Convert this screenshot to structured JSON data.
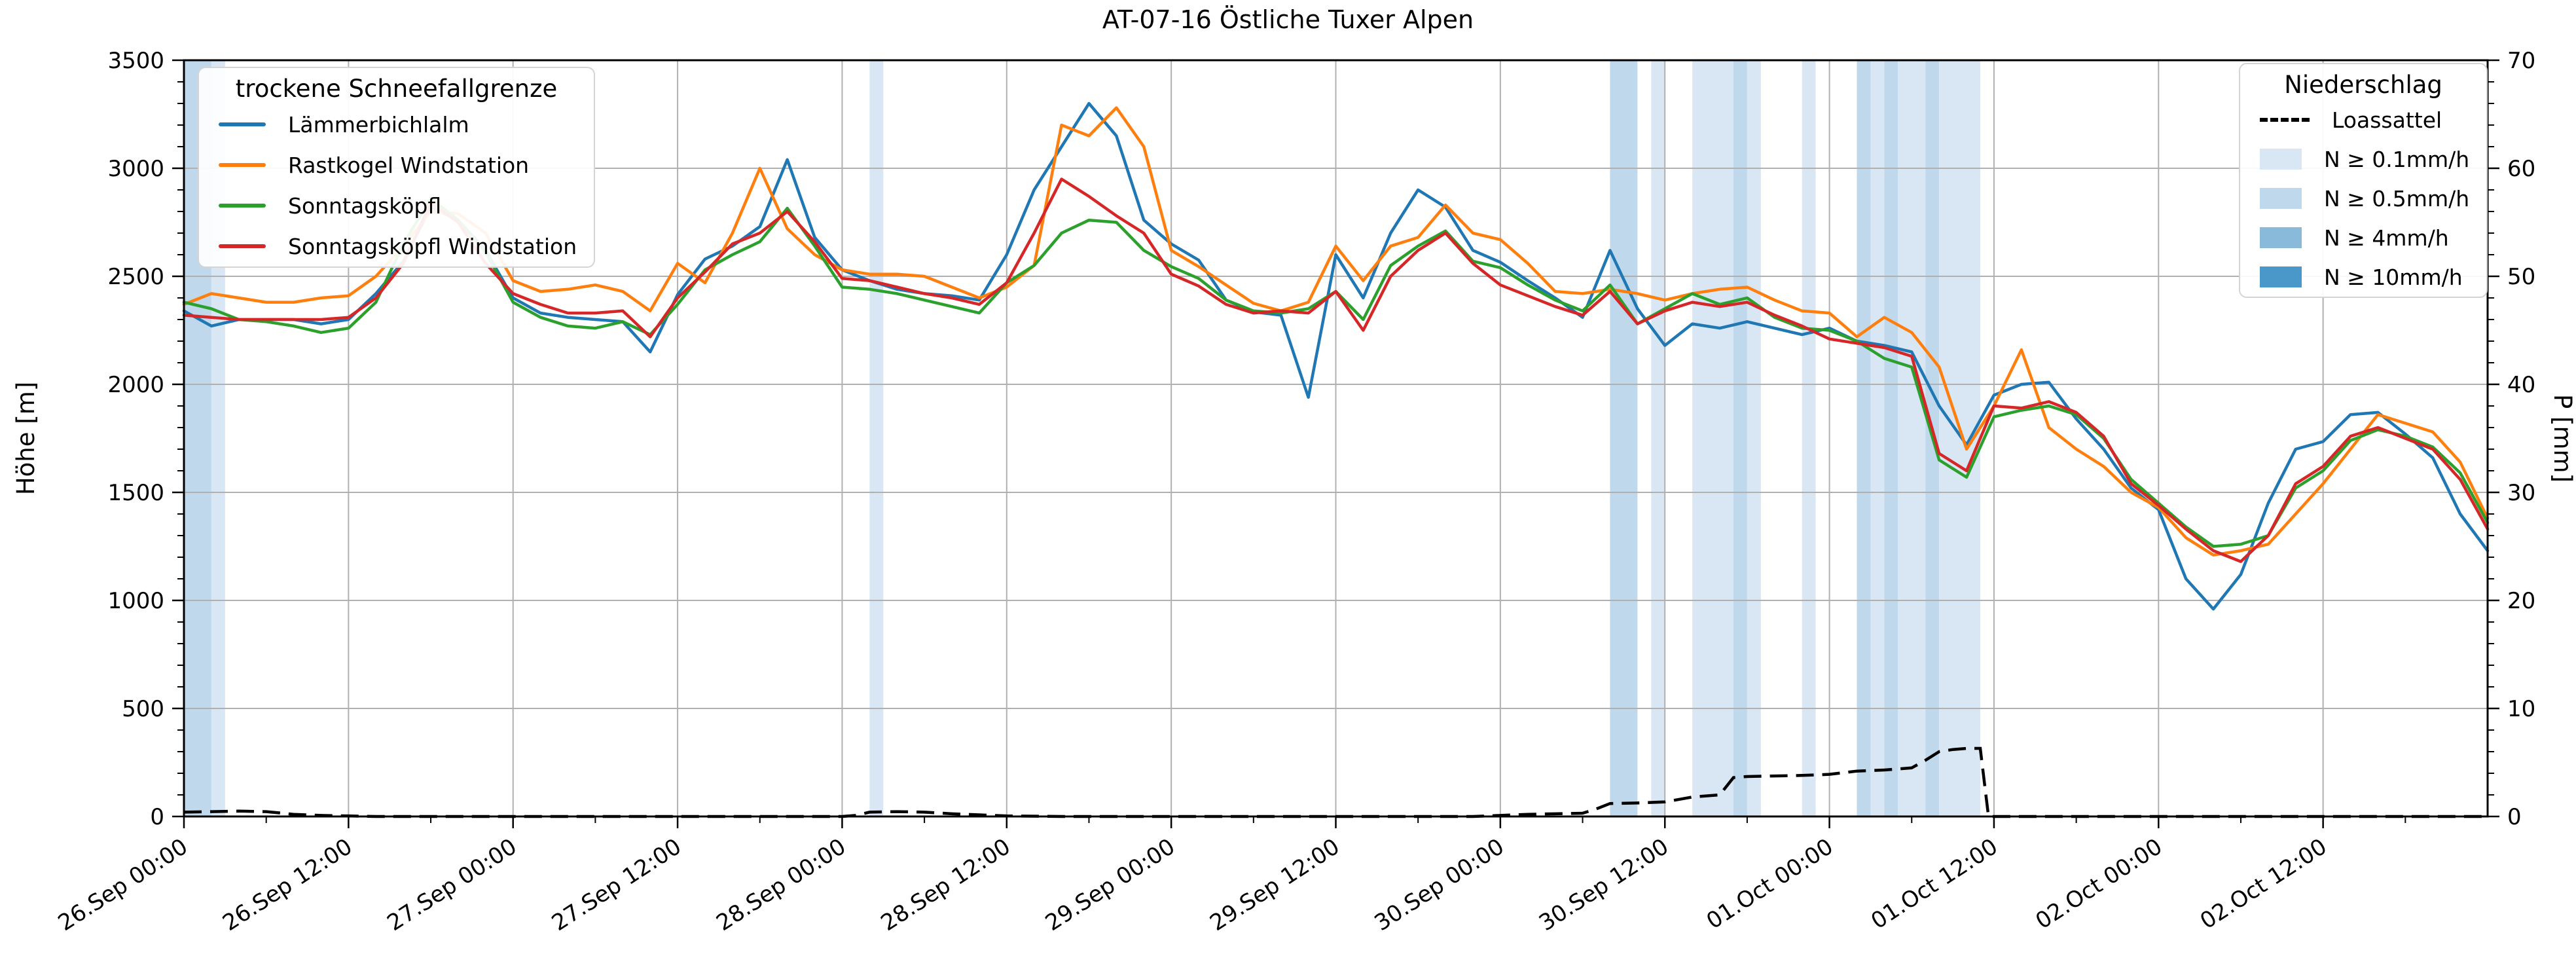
{
  "title": "AT-07-16 Östliche Tuxer Alpen",
  "axes": {
    "y_left_label": "Höhe [m]",
    "y_right_label": "P [mm]",
    "y_left_ticks": [
      0,
      500,
      1000,
      1500,
      2000,
      2500,
      3000,
      3500
    ],
    "y_right_ticks": [
      0,
      10,
      20,
      30,
      40,
      50,
      60,
      70
    ],
    "x_tick_labels": [
      "26.Sep 00:00",
      "26.Sep 12:00",
      "27.Sep 00:00",
      "27.Sep 12:00",
      "28.Sep 00:00",
      "28.Sep 12:00",
      "29.Sep 00:00",
      "29.Sep 12:00",
      "30.Sep 00:00",
      "30.Sep 12:00",
      "01.Oct 00:00",
      "01.Oct 12:00",
      "02.Oct 00:00",
      "02.Oct 12:00"
    ],
    "x_tick_hours": [
      0,
      12,
      24,
      36,
      48,
      60,
      72,
      84,
      96,
      108,
      120,
      132,
      144,
      156
    ]
  },
  "legend_snowline": {
    "title": "trockene Schneefallgrenze",
    "items": [
      {
        "label": "Lämmerbichlalm",
        "color": "#1f77b4"
      },
      {
        "label": "Rastkogel Windstation",
        "color": "#ff7f0e"
      },
      {
        "label": "Sonntagsköpfl",
        "color": "#2ca02c"
      },
      {
        "label": "Sonntagsköpfl Windstation",
        "color": "#d62728"
      }
    ]
  },
  "legend_precip": {
    "title": "Niederschlag",
    "line_item": {
      "label": "Loassattel",
      "color": "#000000",
      "style": "dashed"
    },
    "levels": [
      {
        "label": "N ≥ 0.1mm/h",
        "key": "0.1",
        "color": "#d9e7f5"
      },
      {
        "label": "N ≥ 0.5mm/h",
        "key": "0.5",
        "color": "#bfd8ec"
      },
      {
        "label": "N ≥ 4mm/h",
        "key": "4",
        "color": "#8abada"
      },
      {
        "label": "N ≥ 10mm/h",
        "key": "10",
        "color": "#4a98c9"
      }
    ]
  },
  "chart_data": {
    "type": "line",
    "title": "AT-07-16 Östliche Tuxer Alpen",
    "xlabel": "",
    "ylabel": "Höhe [m]",
    "y2label": "P [mm]",
    "ylim": [
      0,
      3500
    ],
    "y2lim": [
      0,
      70
    ],
    "x_unit": "hours since 26 Sep 00:00",
    "x_range_hours": [
      0,
      168
    ],
    "x_start_hour": 0,
    "x_step_hours": 2,
    "grid": true,
    "legend_positions": [
      "upper left",
      "upper right"
    ],
    "series": [
      {
        "name": "Lämmerbichlalm",
        "color": "#1f77b4",
        "values": [
          2340,
          2270,
          2300,
          2300,
          2300,
          2280,
          2300,
          2420,
          2570,
          2820,
          2760,
          2620,
          2400,
          2330,
          2310,
          2300,
          2290,
          2150,
          2415,
          2580,
          2640,
          2730,
          3040,
          2680,
          2530,
          2480,
          2440,
          2420,
          2410,
          2390,
          2600,
          2900,
          3100,
          3300,
          3150,
          2760,
          2650,
          2575,
          2390,
          2335,
          2320,
          1940,
          2600,
          2400,
          2700,
          2900,
          2820,
          2620,
          2565,
          2480,
          2400,
          2310,
          2620,
          2350,
          2180,
          2280,
          2260,
          2290,
          2260,
          2230,
          2260,
          2200,
          2180,
          2150,
          1900,
          1720,
          1950,
          2000,
          2010,
          1840,
          1700,
          1520,
          1420,
          1100,
          960,
          1120,
          1450,
          1700,
          1735,
          1860,
          1870,
          1770,
          1660,
          1400,
          1230
        ]
      },
      {
        "name": "Rastkogel Windstation",
        "color": "#ff7f0e",
        "values": [
          2370,
          2420,
          2400,
          2380,
          2380,
          2400,
          2410,
          2500,
          2640,
          2800,
          2790,
          2700,
          2480,
          2430,
          2440,
          2460,
          2430,
          2340,
          2560,
          2470,
          2700,
          3000,
          2720,
          2600,
          2530,
          2510,
          2510,
          2500,
          2450,
          2400,
          2450,
          2550,
          3200,
          3150,
          3280,
          3100,
          2620,
          2545,
          2460,
          2375,
          2340,
          2380,
          2640,
          2480,
          2640,
          2680,
          2830,
          2700,
          2670,
          2560,
          2430,
          2420,
          2440,
          2420,
          2390,
          2420,
          2440,
          2450,
          2390,
          2340,
          2330,
          2220,
          2310,
          2240,
          2080,
          1700,
          1900,
          2160,
          1800,
          1700,
          1620,
          1500,
          1430,
          1290,
          1210,
          1230,
          1260,
          1400,
          1540,
          1700,
          1860,
          1820,
          1780,
          1640,
          1380
        ]
      },
      {
        "name": "Sonntagsköpfl",
        "color": "#2ca02c",
        "values": [
          2380,
          2350,
          2300,
          2290,
          2270,
          2240,
          2260,
          2380,
          2650,
          2860,
          2760,
          2610,
          2380,
          2310,
          2270,
          2260,
          2290,
          2230,
          2370,
          2530,
          2600,
          2660,
          2815,
          2640,
          2450,
          2440,
          2420,
          2390,
          2360,
          2330,
          2470,
          2550,
          2700,
          2760,
          2750,
          2620,
          2545,
          2490,
          2390,
          2340,
          2330,
          2350,
          2430,
          2300,
          2550,
          2640,
          2710,
          2570,
          2540,
          2460,
          2390,
          2340,
          2460,
          2280,
          2350,
          2420,
          2370,
          2400,
          2310,
          2260,
          2250,
          2200,
          2120,
          2080,
          1650,
          1570,
          1850,
          1880,
          1900,
          1860,
          1750,
          1560,
          1450,
          1340,
          1250,
          1260,
          1300,
          1520,
          1600,
          1740,
          1790,
          1760,
          1710,
          1590,
          1360
        ]
      },
      {
        "name": "Sonntagsköpfl Windstation",
        "color": "#d62728",
        "values": [
          2320,
          2310,
          2300,
          2300,
          2300,
          2300,
          2310,
          2400,
          2560,
          2840,
          2750,
          2560,
          2420,
          2370,
          2330,
          2330,
          2340,
          2220,
          2400,
          2520,
          2650,
          2700,
          2800,
          2660,
          2490,
          2480,
          2450,
          2420,
          2400,
          2370,
          2470,
          2700,
          2950,
          2870,
          2780,
          2700,
          2510,
          2455,
          2370,
          2330,
          2340,
          2330,
          2430,
          2250,
          2500,
          2620,
          2700,
          2560,
          2460,
          2410,
          2360,
          2320,
          2430,
          2280,
          2340,
          2380,
          2360,
          2380,
          2320,
          2270,
          2210,
          2190,
          2170,
          2130,
          1680,
          1600,
          1900,
          1890,
          1920,
          1870,
          1760,
          1540,
          1440,
          1330,
          1230,
          1180,
          1300,
          1540,
          1620,
          1760,
          1800,
          1750,
          1700,
          1560,
          1330
        ]
      }
    ],
    "precip_line": {
      "name": "Loassattel",
      "unit": "mm",
      "points": [
        [
          0,
          0.4
        ],
        [
          2,
          0.45
        ],
        [
          4,
          0.5
        ],
        [
          6,
          0.45
        ],
        [
          8,
          0.2
        ],
        [
          10,
          0.1
        ],
        [
          12,
          0.05
        ],
        [
          14,
          0
        ],
        [
          48,
          0
        ],
        [
          49,
          0.1
        ],
        [
          50,
          0.4
        ],
        [
          52,
          0.45
        ],
        [
          54,
          0.4
        ],
        [
          56,
          0.25
        ],
        [
          58,
          0.15
        ],
        [
          60,
          0.05
        ],
        [
          64,
          0
        ],
        [
          94,
          0
        ],
        [
          96,
          0.1
        ],
        [
          98,
          0.2
        ],
        [
          100,
          0.25
        ],
        [
          102,
          0.3
        ],
        [
          103,
          0.7
        ],
        [
          104,
          1.2
        ],
        [
          106,
          1.25
        ],
        [
          108,
          1.35
        ],
        [
          110,
          1.8
        ],
        [
          112,
          2.0
        ],
        [
          113,
          3.6
        ],
        [
          114,
          3.7
        ],
        [
          116,
          3.75
        ],
        [
          118,
          3.8
        ],
        [
          120,
          3.9
        ],
        [
          122,
          4.2
        ],
        [
          124,
          4.3
        ],
        [
          126,
          4.5
        ],
        [
          127,
          5.2
        ],
        [
          128,
          6.0
        ],
        [
          129,
          6.2
        ],
        [
          130,
          6.3
        ],
        [
          131,
          6.3
        ],
        [
          131.6,
          0
        ],
        [
          168,
          0
        ]
      ]
    },
    "precip_bands": [
      {
        "start_h": 0,
        "end_h": 2,
        "level": "0.5"
      },
      {
        "start_h": 2,
        "end_h": 3,
        "level": "0.1"
      },
      {
        "start_h": 50,
        "end_h": 51,
        "level": "0.1"
      },
      {
        "start_h": 104,
        "end_h": 106,
        "level": "0.5"
      },
      {
        "start_h": 107,
        "end_h": 108,
        "level": "0.1"
      },
      {
        "start_h": 110,
        "end_h": 113,
        "level": "0.1"
      },
      {
        "start_h": 113,
        "end_h": 114,
        "level": "0.5"
      },
      {
        "start_h": 114,
        "end_h": 115,
        "level": "0.1"
      },
      {
        "start_h": 118,
        "end_h": 119,
        "level": "0.1"
      },
      {
        "start_h": 122,
        "end_h": 123,
        "level": "0.5"
      },
      {
        "start_h": 123,
        "end_h": 124,
        "level": "0.1"
      },
      {
        "start_h": 124,
        "end_h": 125,
        "level": "0.5"
      },
      {
        "start_h": 125,
        "end_h": 127,
        "level": "0.1"
      },
      {
        "start_h": 127,
        "end_h": 128,
        "level": "0.5"
      },
      {
        "start_h": 128,
        "end_h": 131,
        "level": "0.1"
      }
    ]
  },
  "style": {
    "grid_color": "#b0b0b0",
    "spine_color": "#000000",
    "background": "#ffffff"
  }
}
